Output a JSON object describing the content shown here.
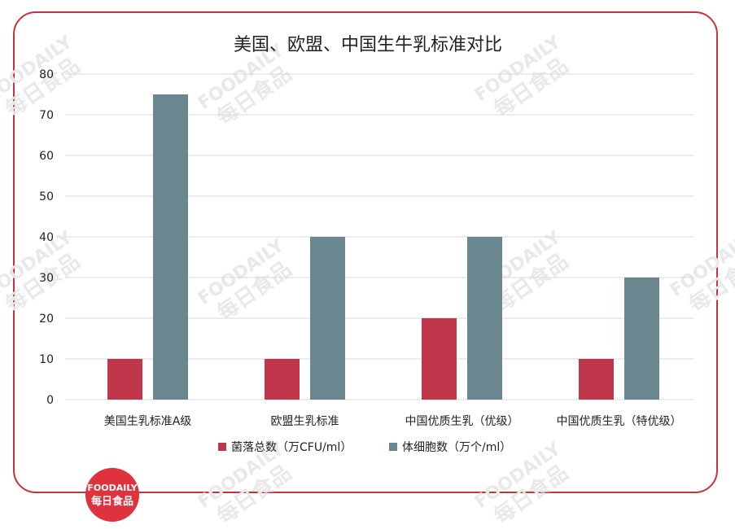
{
  "chart_data": {
    "type": "bar",
    "title": "美国、欧盟、中国生牛乳标准对比",
    "categories": [
      "美国生乳标准A级",
      "欧盟生乳标准",
      "中国优质生乳（优级）",
      "中国优质生乳（特优级）"
    ],
    "series": [
      {
        "name": "菌落总数（万CFU/ml）",
        "values": [
          10,
          10,
          20,
          10
        ],
        "color": "#c0364a"
      },
      {
        "name": "体细胞数（万个/ml）",
        "values": [
          75,
          40,
          40,
          30
        ],
        "color": "#6a8790"
      }
    ],
    "yticks": [
      "0",
      "10",
      "20",
      "30",
      "40",
      "50",
      "60",
      "70",
      "80"
    ],
    "ylim": [
      0,
      80
    ],
    "grid": true,
    "legend_position": "bottom"
  },
  "colors": {
    "frame": "#c8323c",
    "logo": "#e0323c",
    "watermark": "#e9e9e9"
  },
  "watermark": {
    "brand": "FOODAILY",
    "chinese": "每日食品"
  },
  "logo": {
    "line1": "FOODAILY",
    "line2": "每日食品"
  }
}
